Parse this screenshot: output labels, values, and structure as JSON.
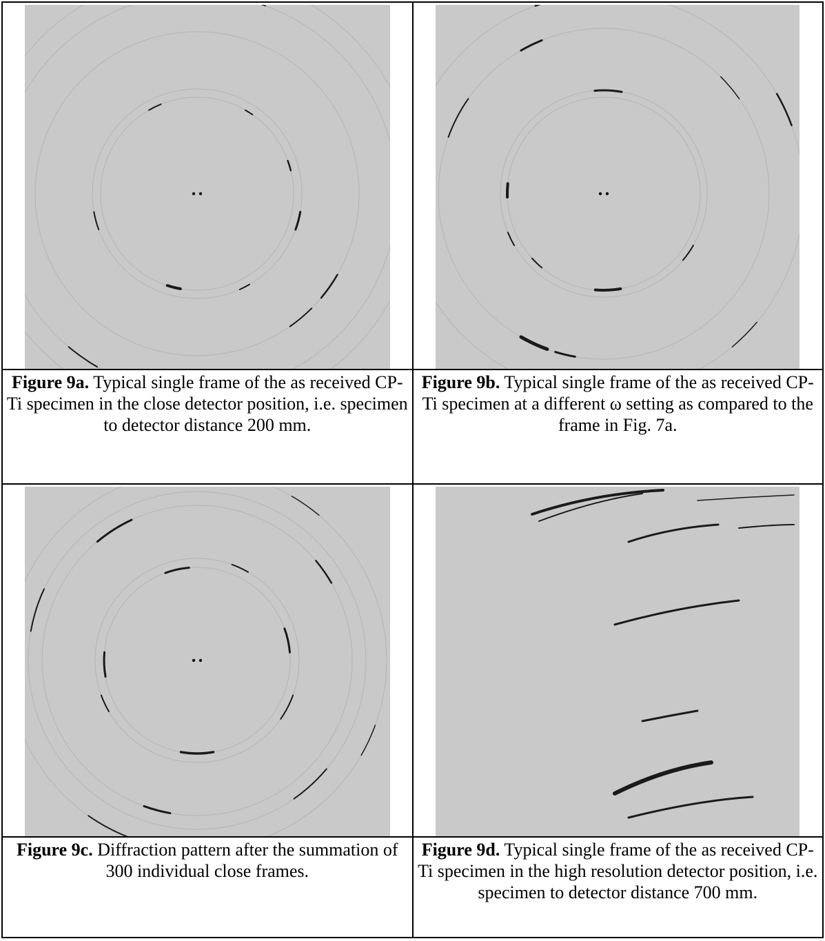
{
  "figures": [
    {
      "label": "Figure 9a.",
      "caption": "Typical single frame of the as received CP-Ti specimen in the close detector position, i.e. specimen to detector distance 200 mm."
    },
    {
      "label": "Figure 9b.",
      "caption": "Typical single frame of the as received CP-Ti specimen at a different ω setting as compared to the frame in Fig. 7a."
    },
    {
      "label": "Figure 9c.",
      "caption": "Diffraction pattern after the summation of 300 individual close frames."
    },
    {
      "label": "Figure 9d.",
      "caption": "Typical single frame of the as received CP-Ti specimen in the high resolution detector position, i.e. specimen to detector distance 700 mm."
    }
  ]
}
